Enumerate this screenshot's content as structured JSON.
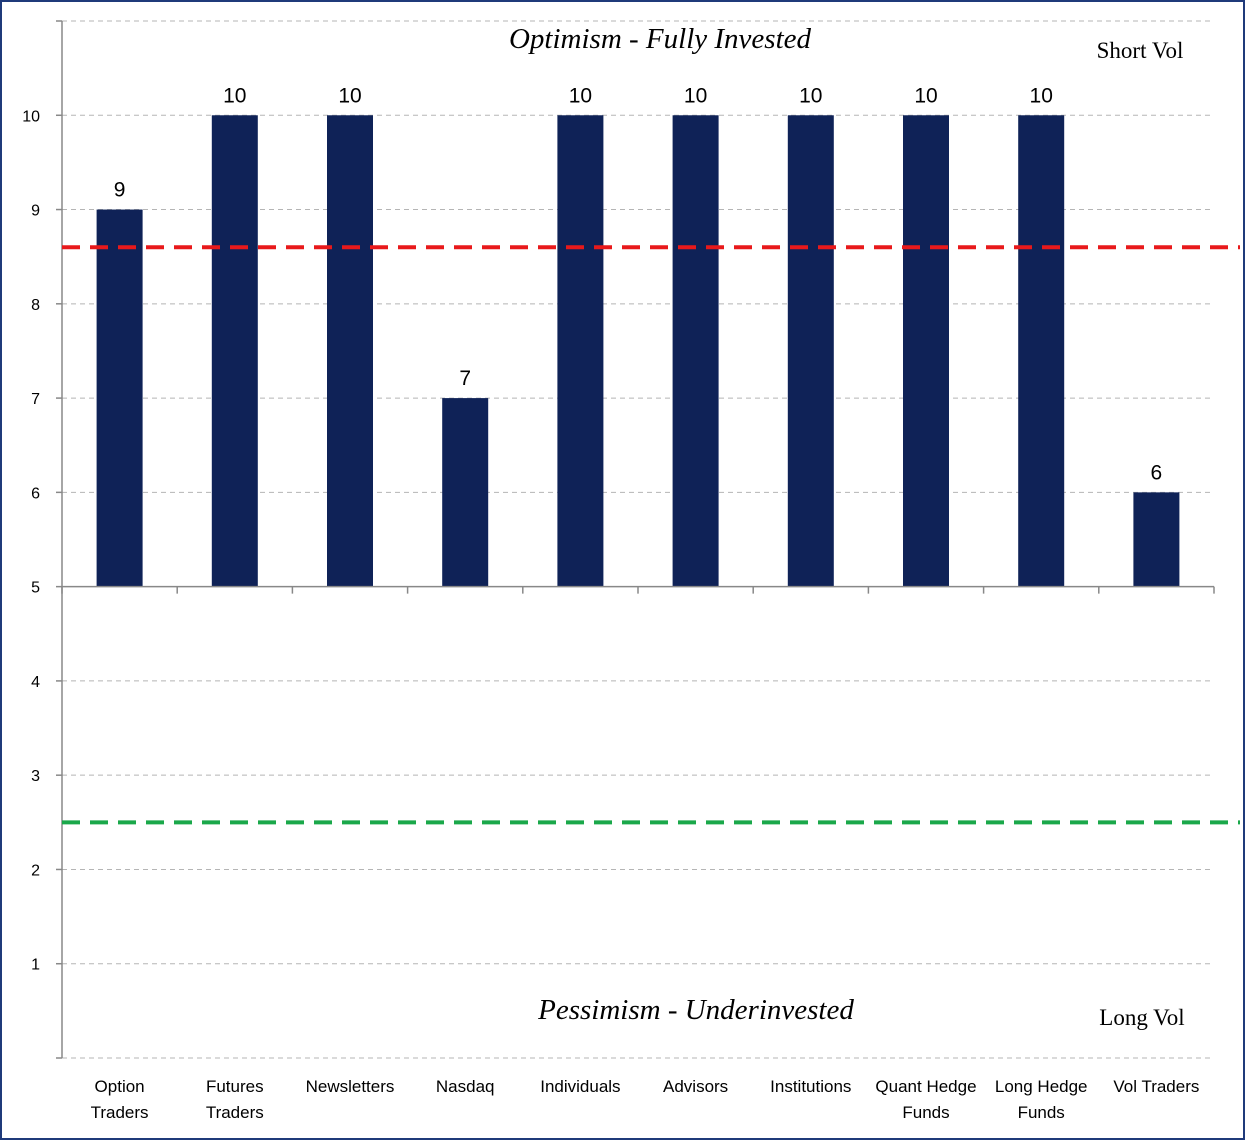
{
  "chart_data": {
    "type": "bar",
    "categories": [
      [
        "Option",
        "Traders"
      ],
      [
        "Futures",
        "Traders"
      ],
      [
        "Newsletters"
      ],
      [
        "Nasdaq"
      ],
      [
        "Individuals"
      ],
      [
        "Advisors"
      ],
      [
        "Institutions"
      ],
      [
        "Quant Hedge",
        "Funds"
      ],
      [
        "Long Hedge",
        "Funds"
      ],
      [
        "Vol Traders"
      ]
    ],
    "values": [
      9,
      10,
      10,
      7,
      10,
      10,
      10,
      10,
      10,
      6
    ],
    "baseline": 5,
    "ylim": [
      0,
      11
    ],
    "yticks": [
      1,
      2,
      3,
      4,
      5,
      6,
      7,
      8,
      9,
      10
    ],
    "grid": true,
    "bar_color": "#0f2257",
    "reference_lines": [
      {
        "value": 8.6,
        "color": "#e8191b",
        "style": "dashed"
      },
      {
        "value": 2.5,
        "color": "#1aa84a",
        "style": "dashed"
      }
    ],
    "annotations": {
      "top_title": "Optimism - Fully Invested",
      "top_right": "Short Vol",
      "bottom_title": "Pessimism - Underinvested",
      "bottom_right": "Long Vol"
    }
  }
}
